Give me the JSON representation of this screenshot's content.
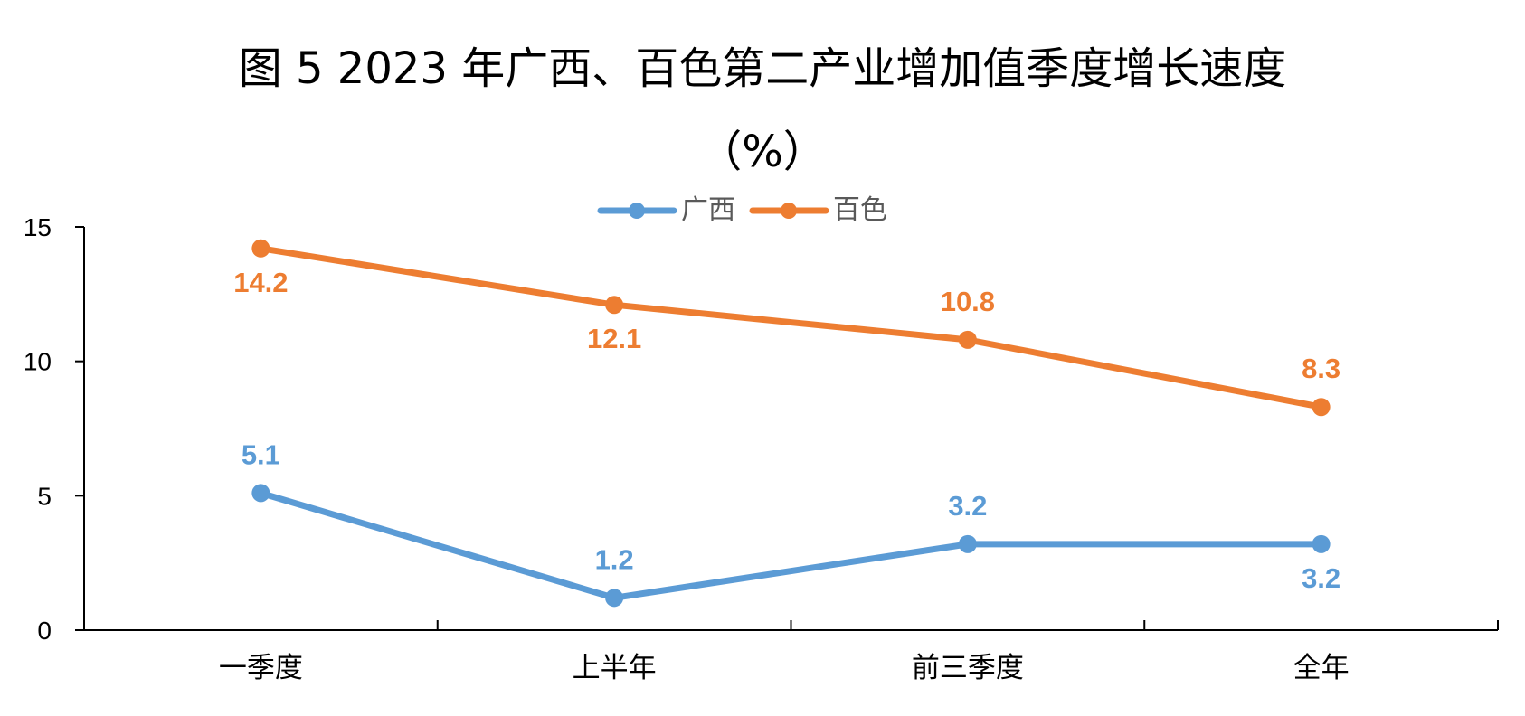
{
  "chart_data": {
    "type": "line",
    "title": "图 5 2023 年广西、百色第二产业增加值季度增长速度",
    "subtitle": "（%）",
    "xlabel": "",
    "ylabel": "",
    "categories": [
      "一季度",
      "上半年",
      "前三季度",
      "全年"
    ],
    "ylim": [
      0,
      15
    ],
    "yticks": [
      0,
      5,
      10,
      15
    ],
    "grid": false,
    "legend_position": "top",
    "series": [
      {
        "name": "广西",
        "values": [
          5.1,
          1.2,
          3.2,
          3.2
        ],
        "color": "#5B9BD5"
      },
      {
        "name": "百色",
        "values": [
          14.2,
          12.1,
          10.8,
          8.3
        ],
        "color": "#ED7D31"
      }
    ]
  }
}
